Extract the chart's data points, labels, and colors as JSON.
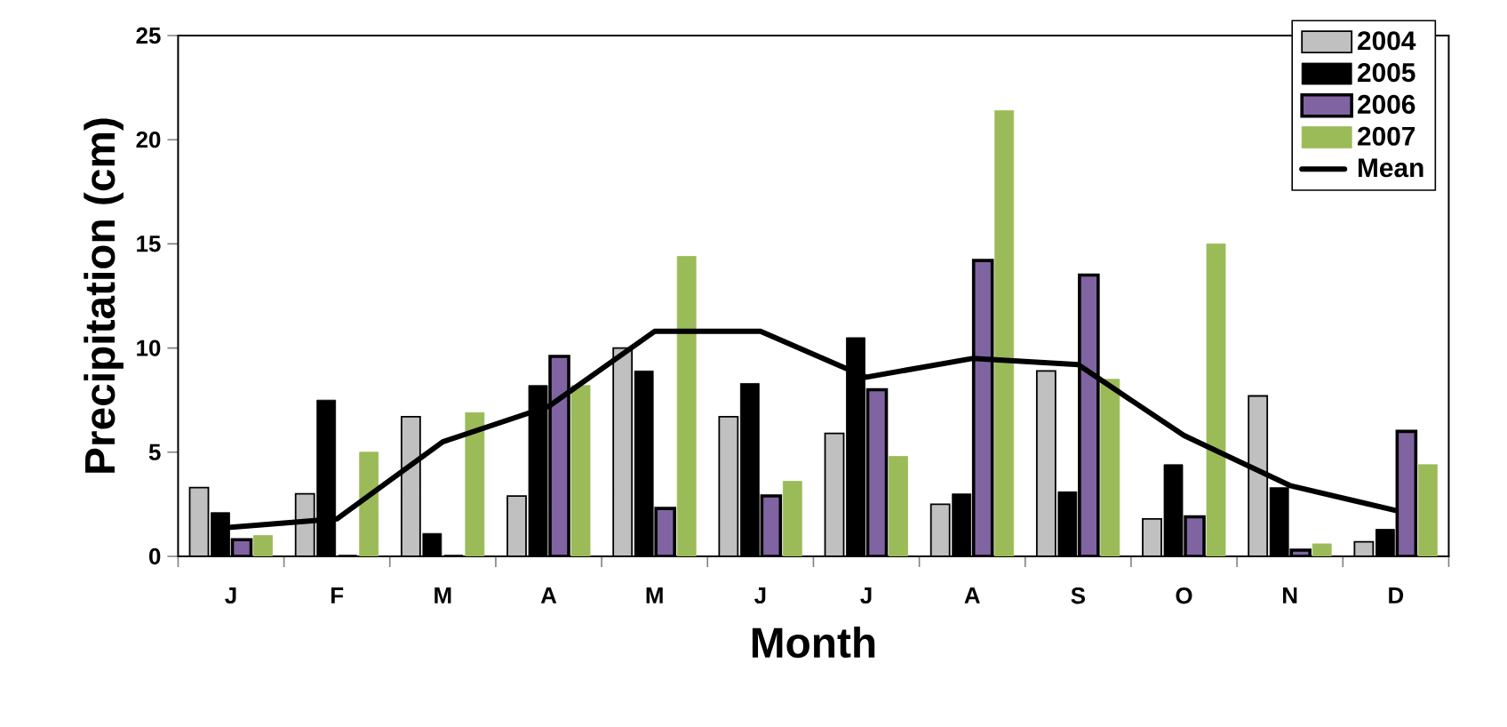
{
  "chart_data": {
    "type": "bar",
    "xlabel": "Month",
    "ylabel": "Precipitation (cm)",
    "categories": [
      "J",
      "F",
      "M",
      "A",
      "M",
      "J",
      "J",
      "A",
      "S",
      "O",
      "N",
      "D"
    ],
    "series": [
      {
        "name": "2004",
        "color": "#c0c0c0",
        "values": [
          3.3,
          3.0,
          6.7,
          2.9,
          10.0,
          6.7,
          5.9,
          2.5,
          8.9,
          1.8,
          7.7,
          0.7
        ]
      },
      {
        "name": "2005",
        "color": "#000000",
        "values": [
          2.1,
          7.5,
          1.1,
          8.2,
          8.9,
          8.3,
          10.5,
          3.0,
          3.1,
          4.4,
          3.3,
          1.3
        ]
      },
      {
        "name": "2006",
        "color": "#8064a2",
        "values": [
          0.8,
          0,
          0,
          9.6,
          2.3,
          2.9,
          8.0,
          14.2,
          13.5,
          1.9,
          0.3,
          6.0
        ]
      },
      {
        "name": "2007",
        "color": "#9bbb59",
        "values": [
          1.0,
          5.0,
          6.9,
          8.2,
          14.4,
          3.6,
          4.8,
          21.4,
          8.5,
          15.0,
          0.6,
          4.4
        ]
      },
      {
        "name": "Mean",
        "type": "line",
        "color": "#000000",
        "values": [
          1.4,
          1.8,
          5.5,
          7.2,
          10.8,
          10.8,
          8.6,
          9.5,
          9.2,
          5.8,
          3.4,
          2.2
        ]
      }
    ],
    "ylim": [
      0,
      25
    ],
    "yticks": [
      0,
      5,
      10,
      15,
      20,
      25
    ],
    "legend": "top right",
    "grid": false,
    "marker": "none",
    "line_style": "solid"
  }
}
